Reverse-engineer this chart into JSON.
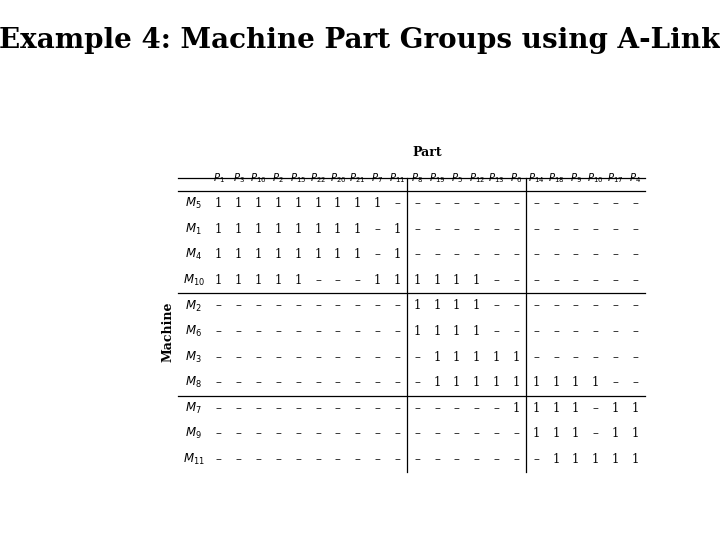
{
  "title": "Example 4: Machine Part Groups using A-Link",
  "col_header_label": "Part",
  "row_header_label": "Machine",
  "col_headers": [
    "P_1",
    "P_3",
    "P_{16}",
    "P_2",
    "P_{15}",
    "P_{22}",
    "P_{20}",
    "P_{21}",
    "P_7",
    "P_{11}",
    "P_8",
    "P_{19}",
    "P_5",
    "P_{12}",
    "P_{13}",
    "P_6",
    "P_{14}",
    "P_{18}",
    "P_9",
    "P_{10}",
    "P_{17}",
    "P_4"
  ],
  "row_headers": [
    "M_5",
    "M_1",
    "M_4",
    "M_{10}",
    "M_2",
    "M_6",
    "M_3",
    "M_8",
    "M_7",
    "M_9",
    "M_{11}"
  ],
  "table_data": [
    [
      "1",
      "1",
      "1",
      "1",
      "1",
      "1",
      "1",
      "1",
      "1",
      "–",
      "–",
      "–",
      "–",
      "–",
      "–",
      "–",
      "–",
      "–",
      "–",
      "–",
      "–",
      "–"
    ],
    [
      "1",
      "1",
      "1",
      "1",
      "1",
      "1",
      "1",
      "1",
      "–",
      "1",
      "–",
      "–",
      "–",
      "–",
      "–",
      "–",
      "–",
      "–",
      "–",
      "–",
      "–",
      "–"
    ],
    [
      "1",
      "1",
      "1",
      "1",
      "1",
      "1",
      "1",
      "1",
      "–",
      "1",
      "–",
      "–",
      "–",
      "–",
      "–",
      "–",
      "–",
      "–",
      "–",
      "–",
      "–",
      "–"
    ],
    [
      "1",
      "1",
      "1",
      "1",
      "1",
      "–",
      "–",
      "–",
      "1",
      "1",
      "1",
      "1",
      "1",
      "1",
      "–",
      "–",
      "–",
      "–",
      "–",
      "–",
      "–",
      "–"
    ],
    [
      "–",
      "–",
      "–",
      "–",
      "–",
      "–",
      "–",
      "–",
      "–",
      "–",
      "1",
      "1",
      "1",
      "1",
      "–",
      "–",
      "–",
      "–",
      "–",
      "–",
      "–",
      "–"
    ],
    [
      "–",
      "–",
      "–",
      "–",
      "–",
      "–",
      "–",
      "–",
      "–",
      "–",
      "1",
      "1",
      "1",
      "1",
      "–",
      "–",
      "–",
      "–",
      "–",
      "–",
      "–",
      "–"
    ],
    [
      "–",
      "–",
      "–",
      "–",
      "–",
      "–",
      "–",
      "–",
      "–",
      "–",
      "–",
      "1",
      "1",
      "1",
      "1",
      "1",
      "–",
      "–",
      "–",
      "–",
      "–",
      "–"
    ],
    [
      "–",
      "–",
      "–",
      "–",
      "–",
      "–",
      "–",
      "–",
      "–",
      "–",
      "–",
      "1",
      "1",
      "1",
      "1",
      "1",
      "1",
      "1",
      "1",
      "1",
      "–",
      "–"
    ],
    [
      "–",
      "–",
      "–",
      "–",
      "–",
      "–",
      "–",
      "–",
      "–",
      "–",
      "–",
      "–",
      "–",
      "–",
      "–",
      "1",
      "1",
      "1",
      "1",
      "–",
      "1",
      "1"
    ],
    [
      "–",
      "–",
      "–",
      "–",
      "–",
      "–",
      "–",
      "–",
      "–",
      "–",
      "–",
      "–",
      "–",
      "–",
      "–",
      "–",
      "1",
      "1",
      "1",
      "–",
      "1",
      "1"
    ],
    [
      "–",
      "–",
      "–",
      "–",
      "–",
      "–",
      "–",
      "–",
      "–",
      "–",
      "–",
      "–",
      "–",
      "–",
      "–",
      "–",
      "–",
      "1",
      "1",
      "1",
      "1",
      "1"
    ]
  ],
  "hlines": [
    4,
    8
  ],
  "vlines": [
    10,
    16
  ],
  "bg_color": "#ffffff",
  "text_color": "#000000",
  "title_fontsize": 20,
  "table_fontsize": 9,
  "header_fontsize": 9
}
